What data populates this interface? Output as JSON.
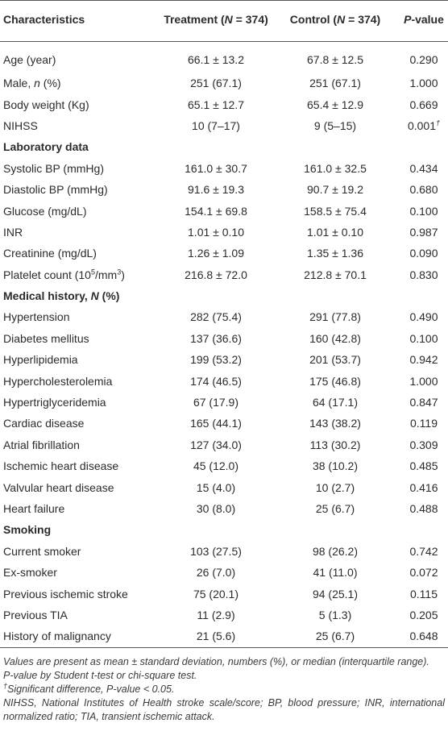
{
  "table": {
    "header": [
      [
        {
          "text": "Characteristics",
          "style": "bold"
        }
      ],
      [
        {
          "text": "Treatment (",
          "style": "bold"
        },
        {
          "text": "N",
          "style": "bold-italic"
        },
        {
          "text": " = 374)",
          "style": "bold"
        }
      ],
      [
        {
          "text": "Control (",
          "style": "bold"
        },
        {
          "text": "N",
          "style": "bold-italic"
        },
        {
          "text": " = 374)",
          "style": "bold"
        }
      ],
      [
        {
          "text": "P",
          "style": "bold-italic"
        },
        {
          "text": "-value",
          "style": "bold"
        }
      ]
    ],
    "rows": [
      {
        "cells": [
          "Age (year)",
          "66.1 ± 13.2",
          "67.8 ± 12.5",
          "0.290"
        ]
      },
      {
        "cells": [
          [
            {
              "text": "Male, ",
              "style": "normal"
            },
            {
              "text": "n",
              "style": "italic"
            },
            {
              "text": " (%)",
              "style": "normal"
            }
          ],
          "251 (67.1)",
          "251 (67.1)",
          "1.000"
        ]
      },
      {
        "cells": [
          "Body weight (Kg)",
          "65.1 ± 12.7",
          "65.4 ± 12.9",
          "0.669"
        ]
      },
      {
        "cells": [
          "NIHSS",
          "10 (7–17)",
          "9 (5–15)",
          [
            {
              "text": "0.001",
              "style": "normal"
            },
            {
              "text": "†",
              "style": "sup-italic"
            }
          ]
        ]
      },
      {
        "section": [
          {
            "text": "Laboratory data",
            "style": "bold"
          }
        ]
      },
      {
        "cells": [
          "Systolic BP (mmHg)",
          "161.0 ± 30.7",
          "161.0 ± 32.5",
          "0.434"
        ]
      },
      {
        "cells": [
          "Diastolic BP (mmHg)",
          "91.6 ± 19.3",
          "90.7 ± 19.2",
          "0.680"
        ]
      },
      {
        "cells": [
          "Glucose (mg/dL)",
          "154.1 ± 69.8",
          "158.5 ± 75.4",
          "0.100"
        ]
      },
      {
        "cells": [
          "INR",
          "1.01 ± 0.10",
          "1.01 ± 0.10",
          "0.987"
        ]
      },
      {
        "cells": [
          "Creatinine (mg/dL)",
          "1.26 ± 1.09",
          "1.35 ± 1.36",
          "0.090"
        ]
      },
      {
        "cells": [
          [
            {
              "text": "Platelet count (10",
              "style": "normal"
            },
            {
              "text": "5",
              "style": "sup"
            },
            {
              "text": "/mm",
              "style": "normal"
            },
            {
              "text": "3",
              "style": "sup"
            },
            {
              "text": ")",
              "style": "normal"
            }
          ],
          "216.8 ± 72.0",
          "212.8 ± 70.1",
          "0.830"
        ]
      },
      {
        "section": [
          {
            "text": "Medical history, ",
            "style": "bold"
          },
          {
            "text": "N",
            "style": "bold-italic"
          },
          {
            "text": " (%)",
            "style": "bold"
          }
        ]
      },
      {
        "cells": [
          "Hypertension",
          "282 (75.4)",
          "291 (77.8)",
          "0.490"
        ]
      },
      {
        "cells": [
          "Diabetes mellitus",
          "137 (36.6)",
          "160 (42.8)",
          "0.100"
        ]
      },
      {
        "cells": [
          "Hyperlipidemia",
          "199 (53.2)",
          "201 (53.7)",
          "0.942"
        ]
      },
      {
        "cells": [
          "Hypercholesterolemia",
          "174 (46.5)",
          "175 (46.8)",
          "1.000"
        ]
      },
      {
        "cells": [
          "Hypertriglyceridemia",
          "67 (17.9)",
          "64 (17.1)",
          "0.847"
        ]
      },
      {
        "cells": [
          "Cardiac disease",
          "165 (44.1)",
          "143 (38.2)",
          "0.119"
        ]
      },
      {
        "cells": [
          "Atrial fibrillation",
          "127 (34.0)",
          "113 (30.2)",
          "0.309"
        ]
      },
      {
        "cells": [
          "Ischemic heart disease",
          "45 (12.0)",
          "38 (10.2)",
          "0.485"
        ]
      },
      {
        "cells": [
          "Valvular heart disease",
          "15 (4.0)",
          "10 (2.7)",
          "0.416"
        ]
      },
      {
        "cells": [
          "Heart failure",
          "30 (8.0)",
          "25 (6.7)",
          "0.488"
        ]
      },
      {
        "section": [
          {
            "text": "Smoking",
            "style": "bold"
          }
        ]
      },
      {
        "cells": [
          "Current smoker",
          "103 (27.5)",
          "98 (26.2)",
          "0.742"
        ]
      },
      {
        "cells": [
          "Ex-smoker",
          "26 (7.0)",
          "41 (11.0)",
          "0.072"
        ]
      },
      {
        "cells": [
          "Previous ischemic stroke",
          "75 (20.1)",
          "94 (25.1)",
          "0.115"
        ]
      },
      {
        "cells": [
          "Previous TIA",
          "11 (2.9)",
          "5 (1.3)",
          "0.205"
        ]
      },
      {
        "cells": [
          "History of malignancy",
          "21 (5.6)",
          "25 (6.7)",
          "0.648"
        ]
      }
    ]
  },
  "footnotes": [
    [
      {
        "text": "Values are present as mean ± standard deviation, numbers (%), or median (interquartile range).",
        "style": "normal"
      }
    ],
    [
      {
        "text": "P-value by Student t-test or chi-square test.",
        "style": "normal"
      }
    ],
    [
      {
        "text": "†",
        "style": "sup"
      },
      {
        "text": "Significant difference, P-value < 0.05.",
        "style": "normal"
      }
    ],
    [
      {
        "text": "NIHSS, National Institutes of Health stroke scale/score; BP, blood pressure; INR, international normalized ratio; TIA, transient ischemic attack.",
        "style": "normal"
      }
    ]
  ]
}
